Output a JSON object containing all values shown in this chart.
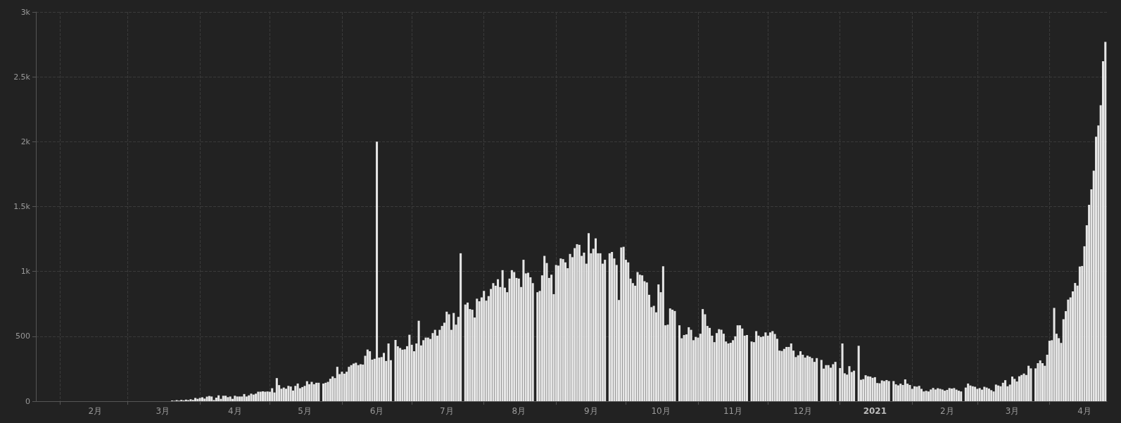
{
  "chart_data": {
    "type": "bar",
    "color": "#e6e6e6",
    "grid": true,
    "xlim": [
      "2020-01-21T12:00",
      "2021-04-25T16:00"
    ],
    "xticks": [
      {
        "value": "2020-02-01",
        "label": null
      },
      {
        "value": "2020-02-16",
        "label": "2月"
      },
      {
        "value": "2020-03-01",
        "label": null
      },
      {
        "value": "2020-03-16",
        "label": "3月"
      },
      {
        "value": "2020-04-01",
        "label": null
      },
      {
        "value": "2020-04-16",
        "label": "4月"
      },
      {
        "value": "2020-05-01",
        "label": null
      },
      {
        "value": "2020-05-16",
        "label": "5月"
      },
      {
        "value": "2020-06-01",
        "label": null
      },
      {
        "value": "2020-06-16",
        "label": "6月"
      },
      {
        "value": "2020-07-01",
        "label": null
      },
      {
        "value": "2020-07-16",
        "label": "7月"
      },
      {
        "value": "2020-08-01",
        "label": null
      },
      {
        "value": "2020-08-16",
        "label": "8月"
      },
      {
        "value": "2020-09-01",
        "label": null
      },
      {
        "value": "2020-09-16",
        "label": "9月"
      },
      {
        "value": "2020-10-01",
        "label": null
      },
      {
        "value": "2020-10-16",
        "label": "10月"
      },
      {
        "value": "2020-11-01",
        "label": null
      },
      {
        "value": "2020-11-16",
        "label": "11月"
      },
      {
        "value": "2020-12-01",
        "label": null
      },
      {
        "value": "2020-12-16",
        "label": "12月"
      },
      {
        "value": "2021-01-01",
        "label": null
      },
      {
        "value": "2021-01-16",
        "label": "2021"
      },
      {
        "value": "2021-02-01",
        "label": null
      },
      {
        "value": "2021-02-16",
        "label": "2月"
      },
      {
        "value": "2021-03-01",
        "label": null
      },
      {
        "value": "2021-03-16",
        "label": "3月"
      },
      {
        "value": "2021-04-01",
        "label": null
      },
      {
        "value": "2021-04-16",
        "label": "4月"
      }
    ],
    "ylim": [
      0,
      3000
    ],
    "yticks": [
      0,
      500,
      {
        "value": 1000,
        "label": "1k"
      },
      {
        "value": 1500,
        "label": "1.5k"
      },
      {
        "value": 2000,
        "label": "2k"
      },
      {
        "value": 2500,
        "label": "2.5k"
      },
      {
        "value": 3000,
        "label": "3k"
      }
    ],
    "x": [
      "2020-01-22",
      "2020-01-23",
      "2020-01-24",
      "2020-01-25",
      "2020-01-26",
      "2020-01-27",
      "2020-01-28",
      "2020-01-29",
      "2020-01-30",
      "2020-01-31",
      "2020-02-01",
      "2020-02-02",
      "2020-02-03",
      "2020-02-04",
      "2020-02-05",
      "2020-02-06",
      "2020-02-07",
      "2020-02-08",
      "2020-02-09",
      "2020-02-10",
      "2020-02-11",
      "2020-02-12",
      "2020-02-13",
      "2020-02-14",
      "2020-02-15",
      "2020-02-16",
      "2020-02-17",
      "2020-02-18",
      "2020-02-19",
      "2020-02-20",
      "2020-02-21",
      "2020-02-22",
      "2020-02-23",
      "2020-02-24",
      "2020-02-25",
      "2020-02-26",
      "2020-02-27",
      "2020-02-28",
      "2020-02-29",
      "2020-03-01",
      "2020-03-02",
      "2020-03-03",
      "2020-03-04",
      "2020-03-05",
      "2020-03-06",
      "2020-03-07",
      "2020-03-08",
      "2020-03-09",
      "2020-03-10",
      "2020-03-11",
      "2020-03-12",
      "2020-03-13",
      "2020-03-14",
      "2020-03-15",
      "2020-03-16",
      "2020-03-17",
      "2020-03-18",
      "2020-03-19",
      "2020-03-20",
      "2020-03-21",
      "2020-03-22",
      "2020-03-23",
      "2020-03-24",
      "2020-03-25",
      "2020-03-26",
      "2020-03-27",
      "2020-03-28",
      "2020-03-29",
      "2020-03-30",
      "2020-03-31",
      "2020-04-01",
      "2020-04-02",
      "2020-04-03",
      "2020-04-04",
      "2020-04-05",
      "2020-04-06",
      "2020-04-07",
      "2020-04-08",
      "2020-04-09",
      "2020-04-10",
      "2020-04-11",
      "2020-04-12",
      "2020-04-13",
      "2020-04-14",
      "2020-04-15",
      "2020-04-16",
      "2020-04-17",
      "2020-04-18",
      "2020-04-19",
      "2020-04-20",
      "2020-04-21",
      "2020-04-22",
      "2020-04-23",
      "2020-04-24",
      "2020-04-25",
      "2020-04-26",
      "2020-04-27",
      "2020-04-28",
      "2020-04-29",
      "2020-04-30",
      "2020-05-01",
      "2020-05-02",
      "2020-05-03",
      "2020-05-04",
      "2020-05-05",
      "2020-05-06",
      "2020-05-07",
      "2020-05-08",
      "2020-05-09",
      "2020-05-10",
      "2020-05-11",
      "2020-05-12",
      "2020-05-13",
      "2020-05-14",
      "2020-05-15",
      "2020-05-16",
      "2020-05-17",
      "2020-05-18",
      "2020-05-19",
      "2020-05-20",
      "2020-05-21",
      "2020-05-22",
      "2020-05-23",
      "2020-05-24",
      "2020-05-25",
      "2020-05-26",
      "2020-05-27",
      "2020-05-28",
      "2020-05-29",
      "2020-05-30",
      "2020-05-31",
      "2020-06-01",
      "2020-06-02",
      "2020-06-03",
      "2020-06-04",
      "2020-06-05",
      "2020-06-06",
      "2020-06-07",
      "2020-06-08",
      "2020-06-09",
      "2020-06-10",
      "2020-06-11",
      "2020-06-12",
      "2020-06-13",
      "2020-06-14",
      "2020-06-15",
      "2020-06-16",
      "2020-06-17",
      "2020-06-18",
      "2020-06-19",
      "2020-06-20",
      "2020-06-21",
      "2020-06-22",
      "2020-06-23",
      "2020-06-24",
      "2020-06-25",
      "2020-06-26",
      "2020-06-27",
      "2020-06-28",
      "2020-06-29",
      "2020-06-30",
      "2020-07-01",
      "2020-07-02",
      "2020-07-03",
      "2020-07-04",
      "2020-07-05",
      "2020-07-06",
      "2020-07-07",
      "2020-07-08",
      "2020-07-09",
      "2020-07-10",
      "2020-07-11",
      "2020-07-12",
      "2020-07-13",
      "2020-07-14",
      "2020-07-15",
      "2020-07-16",
      "2020-07-17",
      "2020-07-18",
      "2020-07-19",
      "2020-07-20",
      "2020-07-21",
      "2020-07-22",
      "2020-07-23",
      "2020-07-24",
      "2020-07-25",
      "2020-07-26",
      "2020-07-27",
      "2020-07-28",
      "2020-07-29",
      "2020-07-30",
      "2020-07-31",
      "2020-08-01",
      "2020-08-02",
      "2020-08-03",
      "2020-08-04",
      "2020-08-05",
      "2020-08-06",
      "2020-08-07",
      "2020-08-08",
      "2020-08-09",
      "2020-08-10",
      "2020-08-11",
      "2020-08-12",
      "2020-08-13",
      "2020-08-14",
      "2020-08-15",
      "2020-08-16",
      "2020-08-17",
      "2020-08-18",
      "2020-08-19",
      "2020-08-20",
      "2020-08-21",
      "2020-08-22",
      "2020-08-23",
      "2020-08-24",
      "2020-08-25",
      "2020-08-26",
      "2020-08-27",
      "2020-08-28",
      "2020-08-29",
      "2020-08-30",
      "2020-08-31",
      "2020-09-01",
      "2020-09-02",
      "2020-09-03",
      "2020-09-04",
      "2020-09-05",
      "2020-09-06",
      "2020-09-07",
      "2020-09-08",
      "2020-09-09",
      "2020-09-10",
      "2020-09-11",
      "2020-09-12",
      "2020-09-13",
      "2020-09-14",
      "2020-09-15",
      "2020-09-16",
      "2020-09-17",
      "2020-09-18",
      "2020-09-19",
      "2020-09-20",
      "2020-09-21",
      "2020-09-22",
      "2020-09-23",
      "2020-09-24",
      "2020-09-25",
      "2020-09-26",
      "2020-09-27",
      "2020-09-28",
      "2020-09-29",
      "2020-09-30",
      "2020-10-01",
      "2020-10-02",
      "2020-10-03",
      "2020-10-04",
      "2020-10-05",
      "2020-10-06",
      "2020-10-07",
      "2020-10-08",
      "2020-10-09",
      "2020-10-10",
      "2020-10-11",
      "2020-10-12",
      "2020-10-13",
      "2020-10-14",
      "2020-10-15",
      "2020-10-16",
      "2020-10-17",
      "2020-10-18",
      "2020-10-19",
      "2020-10-20",
      "2020-10-21",
      "2020-10-22",
      "2020-10-23",
      "2020-10-24",
      "2020-10-25",
      "2020-10-26",
      "2020-10-27",
      "2020-10-28",
      "2020-10-29",
      "2020-10-30",
      "2020-10-31",
      "2020-11-01",
      "2020-11-02",
      "2020-11-03",
      "2020-11-04",
      "2020-11-05",
      "2020-11-06",
      "2020-11-07",
      "2020-11-08",
      "2020-11-09",
      "2020-11-10",
      "2020-11-11",
      "2020-11-12",
      "2020-11-13",
      "2020-11-14",
      "2020-11-15",
      "2020-11-16",
      "2020-11-17",
      "2020-11-18",
      "2020-11-19",
      "2020-11-20",
      "2020-11-21",
      "2020-11-22",
      "2020-11-23",
      "2020-11-24",
      "2020-11-25",
      "2020-11-26",
      "2020-11-27",
      "2020-11-28",
      "2020-11-29",
      "2020-11-30",
      "2020-12-01",
      "2020-12-02",
      "2020-12-03",
      "2020-12-04",
      "2020-12-05",
      "2020-12-06",
      "2020-12-07",
      "2020-12-08",
      "2020-12-09",
      "2020-12-10",
      "2020-12-11",
      "2020-12-12",
      "2020-12-13",
      "2020-12-14",
      "2020-12-15",
      "2020-12-16",
      "2020-12-17",
      "2020-12-18",
      "2020-12-19",
      "2020-12-20",
      "2020-12-21",
      "2020-12-22",
      "2020-12-23",
      "2020-12-24",
      "2020-12-25",
      "2020-12-26",
      "2020-12-27",
      "2020-12-28",
      "2020-12-29",
      "2020-12-30",
      "2020-12-31",
      "2021-01-01",
      "2021-01-02",
      "2021-01-03",
      "2021-01-04",
      "2021-01-05",
      "2021-01-06",
      "2021-01-07",
      "2021-01-08",
      "2021-01-09",
      "2021-01-10",
      "2021-01-11",
      "2021-01-12",
      "2021-01-13",
      "2021-01-14",
      "2021-01-15",
      "2021-01-16",
      "2021-01-17",
      "2021-01-18",
      "2021-01-19",
      "2021-01-20",
      "2021-01-21",
      "2021-01-22",
      "2021-01-23",
      "2021-01-24",
      "2021-01-25",
      "2021-01-26",
      "2021-01-27",
      "2021-01-28",
      "2021-01-29",
      "2021-01-30",
      "2021-01-31",
      "2021-02-01",
      "2021-02-02",
      "2021-02-03",
      "2021-02-04",
      "2021-02-05",
      "2021-02-06",
      "2021-02-07",
      "2021-02-08",
      "2021-02-09",
      "2021-02-10",
      "2021-02-11",
      "2021-02-12",
      "2021-02-13",
      "2021-02-14",
      "2021-02-15",
      "2021-02-16",
      "2021-02-17",
      "2021-02-18",
      "2021-02-19",
      "2021-02-20",
      "2021-02-21",
      "2021-02-22",
      "2021-02-23",
      "2021-02-24",
      "2021-02-25",
      "2021-02-26",
      "2021-02-27",
      "2021-02-28",
      "2021-03-01",
      "2021-03-02",
      "2021-03-03",
      "2021-03-04",
      "2021-03-05",
      "2021-03-06",
      "2021-03-07",
      "2021-03-08",
      "2021-03-09",
      "2021-03-10",
      "2021-03-11",
      "2021-03-12",
      "2021-03-13",
      "2021-03-14",
      "2021-03-15",
      "2021-03-16",
      "2021-03-17",
      "2021-03-18",
      "2021-03-19",
      "2021-03-20",
      "2021-03-21",
      "2021-03-22",
      "2021-03-23",
      "2021-03-24",
      "2021-03-25",
      "2021-03-26",
      "2021-03-27",
      "2021-03-28",
      "2021-03-29",
      "2021-03-30",
      "2021-03-31",
      "2021-04-01",
      "2021-04-02",
      "2021-04-03",
      "2021-04-04",
      "2021-04-05",
      "2021-04-06",
      "2021-04-07",
      "2021-04-08",
      "2021-04-09",
      "2021-04-10",
      "2021-04-11",
      "2021-04-12",
      "2021-04-13",
      "2021-04-14",
      "2021-04-15",
      "2021-04-16",
      "2021-04-17",
      "2021-04-18",
      "2021-04-19",
      "2021-04-20",
      "2021-04-21",
      "2021-04-22",
      "2021-04-23",
      "2021-04-24",
      "2021-04-25"
    ],
    "values": [
      0,
      0,
      0,
      0,
      0,
      0,
      0,
      0,
      0,
      0,
      0,
      0,
      0,
      0,
      0,
      0,
      0,
      0,
      0,
      0,
      0,
      0,
      0,
      0,
      0,
      0,
      0,
      0,
      0,
      0,
      0,
      0,
      0,
      0,
      0,
      0,
      0,
      0,
      0,
      0,
      0,
      0,
      0,
      0,
      0,
      0,
      0,
      0,
      0,
      0,
      0,
      0,
      0,
      0,
      0,
      0,
      0,
      0,
      5,
      3,
      8,
      4,
      10,
      6,
      12,
      8,
      15,
      10,
      25,
      18,
      25,
      30,
      20,
      35,
      40,
      36,
      9,
      27,
      45,
      18,
      42,
      42,
      31,
      36,
      18,
      42,
      36,
      36,
      36,
      55,
      36,
      45,
      58,
      51,
      58,
      73,
      73,
      76,
      73,
      75,
      73,
      100,
      67,
      178,
      124,
      96,
      105,
      96,
      118,
      113,
      82,
      118,
      136,
      100,
      109,
      118,
      154,
      131,
      149,
      131,
      142,
      142,
      0,
      136,
      142,
      149,
      173,
      191,
      178,
      265,
      209,
      227,
      212,
      227,
      265,
      278,
      290,
      296,
      278,
      285,
      282,
      350,
      398,
      385,
      320,
      327,
      2000,
      336,
      340,
      372,
      310,
      445,
      316,
      0,
      472,
      423,
      410,
      397,
      400,
      424,
      512,
      435,
      385,
      445,
      620,
      430,
      470,
      490,
      490,
      480,
      525,
      550,
      505,
      550,
      580,
      605,
      690,
      670,
      550,
      680,
      590,
      650,
      1140,
      0,
      745,
      760,
      710,
      705,
      645,
      790,
      770,
      800,
      850,
      775,
      810,
      865,
      910,
      890,
      940,
      880,
      1010,
      875,
      840,
      945,
      1010,
      995,
      950,
      945,
      880,
      1090,
      985,
      990,
      955,
      910,
      0,
      840,
      850,
      970,
      1120,
      1065,
      950,
      975,
      825,
      1050,
      1045,
      1100,
      1095,
      1070,
      1025,
      1135,
      1110,
      1180,
      1210,
      1205,
      1120,
      1145,
      1060,
      1295,
      1140,
      1175,
      1255,
      1140,
      1140,
      1060,
      1090,
      0,
      1140,
      1150,
      1100,
      1050,
      780,
      1185,
      1190,
      1090,
      1070,
      945,
      910,
      890,
      995,
      975,
      970,
      925,
      915,
      820,
      725,
      735,
      685,
      900,
      840,
      1040,
      585,
      590,
      715,
      705,
      695,
      0,
      585,
      485,
      510,
      515,
      570,
      550,
      470,
      495,
      490,
      520,
      710,
      670,
      580,
      565,
      505,
      455,
      525,
      555,
      550,
      520,
      460,
      445,
      450,
      470,
      500,
      585,
      585,
      560,
      505,
      510,
      0,
      460,
      455,
      540,
      505,
      495,
      500,
      530,
      505,
      530,
      540,
      518,
      481,
      390,
      387,
      403,
      418,
      418,
      445,
      390,
      340,
      354,
      385,
      358,
      336,
      351,
      343,
      332,
      303,
      332,
      0,
      318,
      251,
      278,
      278,
      258,
      285,
      303,
      0,
      255,
      445,
      215,
      205,
      270,
      225,
      235,
      0,
      427,
      165,
      170,
      200,
      192,
      190,
      180,
      185,
      140,
      138,
      160,
      155,
      163,
      155,
      0,
      155,
      130,
      122,
      135,
      125,
      168,
      135,
      125,
      95,
      115,
      112,
      118,
      95,
      75,
      80,
      75,
      90,
      102,
      90,
      100,
      95,
      90,
      81,
      87,
      101,
      97,
      101,
      89,
      81,
      75,
      0,
      105,
      136,
      121,
      115,
      111,
      95,
      101,
      89,
      111,
      105,
      97,
      85,
      75,
      128,
      121,
      115,
      142,
      162,
      115,
      128,
      190,
      172,
      152,
      192,
      202,
      213,
      202,
      273,
      253,
      0,
      253,
      293,
      314,
      293,
      273,
      358,
      466,
      470,
      719,
      520,
      486,
      449,
      632,
      694,
      783,
      800,
      846,
      911,
      891,
      1038,
      1042,
      1194,
      1356,
      1514,
      1633,
      1777,
      2038,
      2125,
      2281,
      2620,
      2770
    ]
  }
}
